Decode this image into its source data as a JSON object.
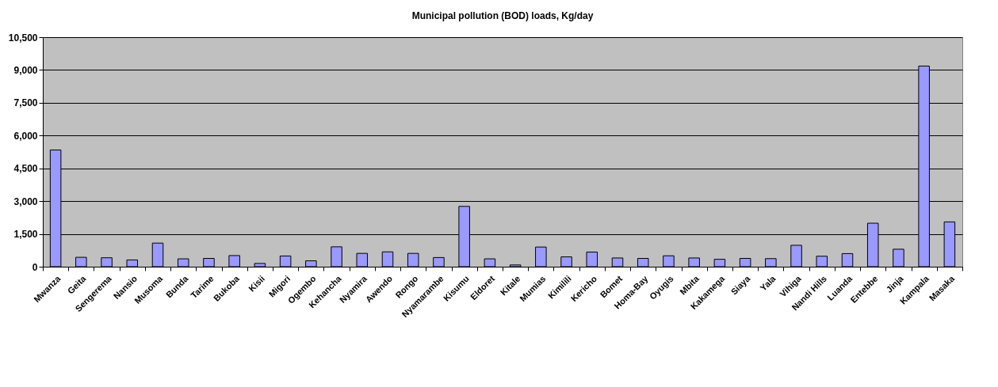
{
  "chart_data": {
    "type": "bar",
    "title": "Municipal pollution (BOD) loads, Kg/day",
    "categories": [
      "Mwanza",
      "Geita",
      "Sengerema",
      "Nansio",
      "Musoma",
      "Bunda",
      "Tarime",
      "Bukoba",
      "Kisii",
      "Migori",
      "Ogembo",
      "Kehancha",
      "Nyamira",
      "Awendo",
      "Rongo",
      "Nyamarambe",
      "Kisumu",
      "Eldoret",
      "Kitale",
      "Mumias",
      "Kimilili",
      "Kericho",
      "Bomet",
      "Homa-Bay",
      "Oyugis",
      "Mbita",
      "Kakamega",
      "Siaya",
      "Yala",
      "Vihiga",
      "Nandi Hills",
      "Luanda",
      "Entebbe",
      "Jinja",
      "Kampala",
      "Masaka"
    ],
    "values": [
      5340,
      430,
      410,
      310,
      1080,
      360,
      380,
      510,
      150,
      490,
      270,
      910,
      610,
      680,
      610,
      420,
      2760,
      360,
      80,
      900,
      450,
      670,
      400,
      380,
      500,
      400,
      340,
      380,
      370,
      980,
      480,
      600,
      1990,
      800,
      9180,
      2050
    ],
    "color": "#9999ff",
    "ylim": [
      0,
      10500
    ],
    "yticks": [
      {
        "value": 0,
        "label": "0"
      },
      {
        "value": 1500,
        "label": "1,500"
      },
      {
        "value": 3000,
        "label": "3,000"
      },
      {
        "value": 4500,
        "label": "4,500"
      },
      {
        "value": 6000,
        "label": "6,000"
      },
      {
        "value": 7500,
        "label": "7,500"
      },
      {
        "value": 9000,
        "label": "9,000"
      },
      {
        "value": 10500,
        "label": "10,500"
      }
    ],
    "grid": "y"
  }
}
